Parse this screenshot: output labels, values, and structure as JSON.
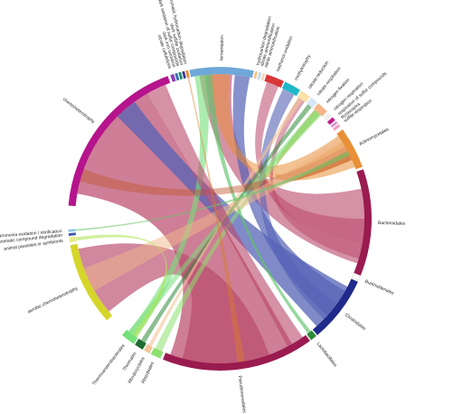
{
  "figure": {
    "arcs": [
      {
        "id": "chemoheterotrophy",
        "label": "chemoheterotrophy",
        "color": "#b5148c",
        "a0": -85,
        "a1": -20
      },
      {
        "id": "nitrate_cellulolysis",
        "label": "nitrate cellulolysis",
        "color": "#8a3fb0",
        "a0": -19,
        "a1": -17.6
      },
      {
        "id": "dark_iron_oxidation",
        "label": "dark iron oxidation",
        "color": "#2c6fb3",
        "a0": -17.2,
        "a1": -16.2
      },
      {
        "id": "dark_oxidation_sulfur",
        "label": "dark oxidation of sulfur compounds",
        "color": "#1c8a6a",
        "a0": -15.8,
        "a1": -14.8
      },
      {
        "id": "dark_sulfide_oxidation",
        "label": "dark sulfide oxidation",
        "color": "#3a3a9c",
        "a0": -14.4,
        "a1": -13.4
      },
      {
        "id": "aromatic_hydrocarbon_deg",
        "label": "aromatic hydrocarbon degradation",
        "color": "#e88f2f",
        "a0": -13,
        "a1": -12
      },
      {
        "id": "fermentation",
        "label": "fermentation",
        "color": "#6fa8d8",
        "a0": -11.5,
        "a1": 13
      },
      {
        "id": "hydrogen_carbon",
        "label": "hydrocarbon degradation",
        "color": "#f6c28a",
        "a0": 13.5,
        "a1": 14.5
      },
      {
        "id": "nitrate_ammonification",
        "label": "nitrate ammonification",
        "color": "#c2d8ee",
        "a0": 15,
        "a1": 16
      },
      {
        "id": "nitrite_ammonification",
        "label": "nitrite ammonification",
        "color": "#f7d7b8",
        "a0": 16.5,
        "a1": 17.5
      },
      {
        "id": "methanol_oxidation",
        "label": "methanol oxidation",
        "color": "#d9383a",
        "a0": 18,
        "a1": 25
      },
      {
        "id": "methylotrophy",
        "label": "methylotrophy",
        "color": "#20b8c8",
        "a0": 25.5,
        "a1": 32
      },
      {
        "id": "nitrate_reduction",
        "label": "nitrate reduction",
        "color": "#fbe0a8",
        "a0": 32.5,
        "a1": 36.5
      },
      {
        "id": "nitrate_respiration",
        "label": "nitrate respiration",
        "color": "#d7e7f5",
        "a0": 37,
        "a1": 40
      },
      {
        "id": "nitrogen_fixation",
        "label": "nitrogen fixation",
        "color": "#f6b488",
        "a0": 40.5,
        "a1": 45
      },
      {
        "id": "nitrogen_respiration",
        "label": "nitrogen respiration",
        "color": "#f2f2f2",
        "a0": 45.5,
        "a1": 47.5
      },
      {
        "id": "respiration_sulfur",
        "label": "respiration of sulfur compounds",
        "color": "#c21f8c",
        "a0": 48,
        "a1": 49.5
      },
      {
        "id": "roseobacteria",
        "label": "Roseospira",
        "color": "#dc8fd2",
        "a0": 50,
        "a1": 51
      },
      {
        "id": "sulfite_respiration",
        "label": "sulfite respiration",
        "color": "#ef9ab8",
        "a0": 51.5,
        "a1": 52.5
      },
      {
        "id": "actinomycetales",
        "label": "Actinomycetales",
        "color": "#e89038",
        "a0": 54,
        "a1": 70
      },
      {
        "id": "bacteroidales",
        "label": "Bacteroidales",
        "color": "#9a1b50",
        "a0": 71,
        "a1": 112
      },
      {
        "id": "burkholderiales",
        "label": "Burkholderiales",
        "color": "#ffffff",
        "a0": 112.5,
        "a1": 114
      },
      {
        "id": "clostridiales",
        "label": "Clostridiales",
        "color": "#202a8a",
        "a0": 114.5,
        "a1": 140
      },
      {
        "id": "lactobacillales",
        "label": "Lactobacillales",
        "color": "#2e8a3a",
        "a0": 140.5,
        "a1": 143
      },
      {
        "id": "pseudomonadales",
        "label": "Pseudomonadales",
        "color": "#9a1b50",
        "a0": 143.5,
        "a1": 202
      },
      {
        "id": "rhizobiales",
        "label": "Rhizobiales",
        "color": "#8de070",
        "a0": 203,
        "a1": 207
      },
      {
        "id": "rhodocyclales",
        "label": "Rhodocyclales",
        "color": "#f3c79b",
        "a0": 207.5,
        "a1": 210
      },
      {
        "id": "thermales",
        "label": "Thermales",
        "color": "#1d6b2f",
        "a0": 210.5,
        "a1": 214
      },
      {
        "id": "thermoanaerobacterales",
        "label": "Thermoanaerobacterales",
        "color": "#76e07a",
        "a0": 214.5,
        "a1": 220
      },
      {
        "id": "aerobic_chemoheterotrophy",
        "label": "aerobic chemoheterotrophy",
        "color": "#d5d52a",
        "a0": 228,
        "a1": 260
      },
      {
        "id": "animal_parasites",
        "label": "animal parasites or symbionts",
        "color": "#e8eb8a",
        "a0": 261,
        "a1": 263
      },
      {
        "id": "aromatic_compound_deg",
        "label": "aromatic compound degradation",
        "color": "#3b5da8",
        "a0": 263.5,
        "a1": 264.5
      },
      {
        "id": "ammonia_oxidation",
        "label": "ammonia oxidation / nitrification",
        "color": "#8fc9e8",
        "a0": 265,
        "a1": 266
      }
    ],
    "ribbons": [
      {
        "from": [
          "chemoheterotrophy",
          -80,
          -30
        ],
        "to": [
          "pseudomonadales",
          150,
          200
        ],
        "color": "#b9476a",
        "opacity": 0.7
      },
      {
        "from": [
          "aerobic_chemoheterotrophy",
          230,
          258
        ],
        "to": [
          "pseudomonadales",
          160,
          195
        ],
        "color": "#b9476a",
        "opacity": 0.65
      },
      {
        "from": [
          "chemoheterotrophy",
          -45,
          -36
        ],
        "to": [
          "clostridiales",
          118,
          138
        ],
        "color": "#5563b5",
        "opacity": 0.75
      },
      {
        "from": [
          "fermentation",
          -8,
          5
        ],
        "to": [
          "bacteroidales",
          78,
          108
        ],
        "color": "#b9476a",
        "opacity": 0.6
      },
      {
        "from": [
          "fermentation",
          6,
          12
        ],
        "to": [
          "clostridiales",
          120,
          132
        ],
        "color": "#5563b5",
        "opacity": 0.7
      },
      {
        "from": [
          "actinomycetales",
          55,
          69
        ],
        "to": [
          "fermentation",
          -4,
          4
        ],
        "color": "#e89038",
        "opacity": 0.55
      },
      {
        "from": [
          "actinomycetales",
          58,
          66
        ],
        "to": [
          "nitrogen_fixation",
          41,
          44
        ],
        "color": "#e89038",
        "opacity": 0.55
      },
      {
        "from": [
          "methylotrophy",
          26,
          31
        ],
        "to": [
          "clostridiales",
          126,
          134
        ],
        "color": "#5563b5",
        "opacity": 0.6
      },
      {
        "from": [
          "methanol_oxidation",
          19,
          24
        ],
        "to": [
          "bacteroidales",
          90,
          100
        ],
        "color": "#b9476a",
        "opacity": 0.55
      },
      {
        "from": [
          "nitrate_reduction",
          33,
          36
        ],
        "to": [
          "bacteroidales",
          100,
          106
        ],
        "color": "#b9476a",
        "opacity": 0.5
      },
      {
        "from": [
          "thermoanaerobacterales",
          215,
          219
        ],
        "to": [
          "fermentation",
          -10,
          -5
        ],
        "color": "#76e07a",
        "opacity": 0.6
      },
      {
        "from": [
          "thermoanaerobacterales",
          216,
          219
        ],
        "to": [
          "nitrogen_fixation",
          41,
          44
        ],
        "color": "#76e07a",
        "opacity": 0.55
      },
      {
        "from": [
          "thermales",
          211,
          213
        ],
        "to": [
          "nitrate_respiration",
          37.5,
          39.5
        ],
        "color": "#2e8a3a",
        "opacity": 0.55
      },
      {
        "from": [
          "rhizobiales",
          203.5,
          206.5
        ],
        "to": [
          "nitrogen_fixation",
          41.5,
          44.5
        ],
        "color": "#8de070",
        "opacity": 0.55
      },
      {
        "from": [
          "rhodocyclales",
          208,
          209.5
        ],
        "to": [
          "nitrate_reduction",
          33,
          35
        ],
        "color": "#f3c79b",
        "opacity": 0.6
      },
      {
        "from": [
          "lactobacillales",
          141,
          142.5
        ],
        "to": [
          "fermentation",
          -6,
          -3
        ],
        "color": "#5fc36a",
        "opacity": 0.65
      },
      {
        "from": [
          "chemoheterotrophy",
          -75,
          -70
        ],
        "to": [
          "actinomycetales",
          60,
          66
        ],
        "color": "#c2562f",
        "opacity": 0.45
      },
      {
        "from": [
          "aerobic_chemoheterotrophy",
          240,
          250
        ],
        "to": [
          "actinomycetales",
          56,
          62
        ],
        "color": "#f0b889",
        "opacity": 0.5
      },
      {
        "from": [
          "chemoheterotrophy",
          -30,
          -22
        ],
        "to": [
          "pseudomonadales",
          145,
          152
        ],
        "color": "#b9476a",
        "opacity": 0.6
      },
      {
        "from": [
          "animal_parasites",
          261.3,
          262.7
        ],
        "to": [
          "thermoanaerobacterales",
          215,
          217
        ],
        "color": "#b0e65a",
        "opacity": 0.6
      },
      {
        "from": [
          "ammonia_oxidation",
          265.2,
          265.8
        ],
        "to": [
          "actinomycetales",
          62,
          64
        ],
        "color": "#6cc76d",
        "opacity": 0.6
      },
      {
        "from": [
          "aromatic_hydrocarbon_deg",
          -12.8,
          -12.2
        ],
        "to": [
          "pseudomonadales",
          170,
          173
        ],
        "color": "#d97c2a",
        "opacity": 0.45
      }
    ]
  }
}
